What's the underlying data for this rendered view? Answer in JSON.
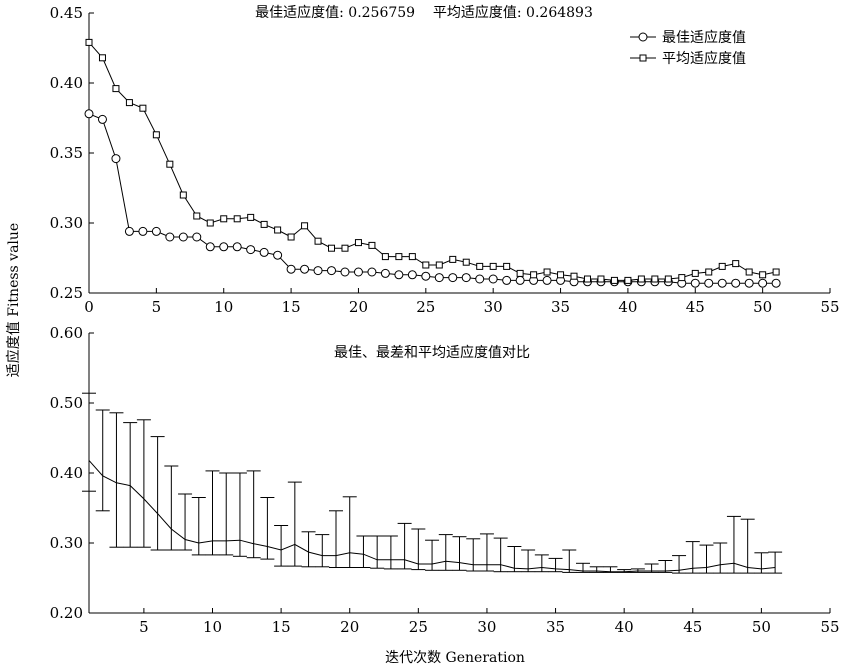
{
  "figure": {
    "ylabel": "适应度值 Fitness value",
    "xlabel": "迭代次数 Generation"
  },
  "chart_data": [
    {
      "type": "line",
      "title": "最佳适应度值: 0.256759    平均适应度值: 0.264893",
      "xlim": [
        0,
        55
      ],
      "ylim": [
        0.25,
        0.45
      ],
      "x_ticks": [
        0,
        5,
        10,
        15,
        20,
        25,
        30,
        35,
        40,
        45,
        50,
        55
      ],
      "y_ticks": [
        0.25,
        0.3,
        0.35,
        0.4,
        0.45
      ],
      "x_tick_labels": [
        "0",
        "5",
        "10",
        "15",
        "20",
        "25",
        "30",
        "35",
        "40",
        "45",
        "50",
        "55"
      ],
      "y_tick_labels": [
        "0.25",
        "0.30",
        "0.35",
        "0.40",
        "0.45"
      ],
      "legend_position": "top-right",
      "grid": false,
      "series": [
        {
          "name": "最佳适应度值",
          "marker": "circle",
          "x": [
            0,
            1,
            2,
            3,
            4,
            5,
            6,
            7,
            8,
            9,
            10,
            11,
            12,
            13,
            14,
            15,
            16,
            17,
            18,
            19,
            20,
            21,
            22,
            23,
            24,
            25,
            26,
            27,
            28,
            29,
            30,
            31,
            32,
            33,
            34,
            35,
            36,
            37,
            38,
            39,
            40,
            41,
            42,
            43,
            44,
            45,
            46,
            47,
            48,
            49,
            50,
            51
          ],
          "values": [
            0.378,
            0.374,
            0.346,
            0.294,
            0.294,
            0.294,
            0.29,
            0.29,
            0.29,
            0.283,
            0.283,
            0.283,
            0.281,
            0.279,
            0.277,
            0.267,
            0.267,
            0.266,
            0.266,
            0.265,
            0.265,
            0.265,
            0.264,
            0.263,
            0.263,
            0.262,
            0.261,
            0.261,
            0.261,
            0.26,
            0.26,
            0.259,
            0.259,
            0.259,
            0.259,
            0.259,
            0.258,
            0.258,
            0.258,
            0.258,
            0.258,
            0.258,
            0.258,
            0.258,
            0.257,
            0.257,
            0.257,
            0.257,
            0.257,
            0.257,
            0.257,
            0.257
          ]
        },
        {
          "name": "平均适应度值",
          "marker": "square",
          "x": [
            0,
            1,
            2,
            3,
            4,
            5,
            6,
            7,
            8,
            9,
            10,
            11,
            12,
            13,
            14,
            15,
            16,
            17,
            18,
            19,
            20,
            21,
            22,
            23,
            24,
            25,
            26,
            27,
            28,
            29,
            30,
            31,
            32,
            33,
            34,
            35,
            36,
            37,
            38,
            39,
            40,
            41,
            42,
            43,
            44,
            45,
            46,
            47,
            48,
            49,
            50,
            51
          ],
          "values": [
            0.429,
            0.418,
            0.396,
            0.386,
            0.382,
            0.363,
            0.342,
            0.32,
            0.305,
            0.3,
            0.303,
            0.303,
            0.304,
            0.299,
            0.295,
            0.29,
            0.298,
            0.287,
            0.282,
            0.282,
            0.286,
            0.284,
            0.276,
            0.276,
            0.276,
            0.27,
            0.27,
            0.274,
            0.272,
            0.269,
            0.269,
            0.269,
            0.264,
            0.263,
            0.265,
            0.263,
            0.262,
            0.26,
            0.26,
            0.259,
            0.259,
            0.26,
            0.26,
            0.26,
            0.261,
            0.264,
            0.265,
            0.269,
            0.271,
            0.265,
            0.263,
            0.265
          ]
        }
      ]
    },
    {
      "type": "line",
      "title": "最佳、最差和平均适应度值对比",
      "xlim": [
        1,
        55
      ],
      "ylim": [
        0.2,
        0.6
      ],
      "x_ticks": [
        5,
        10,
        15,
        20,
        25,
        30,
        35,
        40,
        45,
        50,
        55
      ],
      "y_ticks": [
        0.2,
        0.3,
        0.4,
        0.5,
        0.6
      ],
      "x_tick_labels": [
        "5",
        "10",
        "15",
        "20",
        "25",
        "30",
        "35",
        "40",
        "45",
        "50",
        "55"
      ],
      "y_tick_labels": [
        "0.20",
        "0.30",
        "0.40",
        "0.50",
        "0.60"
      ],
      "grid": false,
      "error_bars": true,
      "x": [
        1,
        2,
        3,
        4,
        5,
        6,
        7,
        8,
        9,
        10,
        11,
        12,
        13,
        14,
        15,
        16,
        17,
        18,
        19,
        20,
        21,
        22,
        23,
        24,
        25,
        26,
        27,
        28,
        29,
        30,
        31,
        32,
        33,
        34,
        35,
        36,
        37,
        38,
        39,
        40,
        41,
        42,
        43,
        44,
        45,
        46,
        47,
        48,
        49,
        50,
        51
      ],
      "mean": [
        0.418,
        0.396,
        0.386,
        0.382,
        0.363,
        0.342,
        0.32,
        0.305,
        0.3,
        0.303,
        0.303,
        0.304,
        0.299,
        0.295,
        0.29,
        0.298,
        0.287,
        0.282,
        0.282,
        0.286,
        0.284,
        0.276,
        0.276,
        0.276,
        0.27,
        0.27,
        0.274,
        0.272,
        0.269,
        0.269,
        0.269,
        0.264,
        0.263,
        0.265,
        0.263,
        0.262,
        0.26,
        0.26,
        0.259,
        0.259,
        0.26,
        0.26,
        0.26,
        0.261,
        0.264,
        0.265,
        0.269,
        0.271,
        0.265,
        0.263,
        0.265
      ],
      "best": [
        0.374,
        0.346,
        0.294,
        0.294,
        0.294,
        0.29,
        0.29,
        0.29,
        0.283,
        0.283,
        0.283,
        0.281,
        0.279,
        0.277,
        0.267,
        0.267,
        0.266,
        0.266,
        0.265,
        0.265,
        0.265,
        0.264,
        0.263,
        0.263,
        0.262,
        0.261,
        0.261,
        0.261,
        0.26,
        0.26,
        0.259,
        0.259,
        0.259,
        0.259,
        0.259,
        0.258,
        0.258,
        0.258,
        0.258,
        0.258,
        0.258,
        0.258,
        0.258,
        0.257,
        0.257,
        0.257,
        0.257,
        0.257,
        0.257,
        0.257,
        0.257
      ],
      "worst": [
        0.514,
        0.49,
        0.486,
        0.472,
        0.476,
        0.452,
        0.41,
        0.37,
        0.365,
        0.403,
        0.4,
        0.4,
        0.403,
        0.365,
        0.325,
        0.387,
        0.316,
        0.312,
        0.346,
        0.366,
        0.31,
        0.31,
        0.31,
        0.328,
        0.32,
        0.304,
        0.312,
        0.309,
        0.306,
        0.313,
        0.307,
        0.295,
        0.29,
        0.283,
        0.278,
        0.29,
        0.271,
        0.266,
        0.266,
        0.262,
        0.263,
        0.27,
        0.275,
        0.282,
        0.302,
        0.297,
        0.3,
        0.338,
        0.334,
        0.286,
        0.287
      ]
    }
  ]
}
